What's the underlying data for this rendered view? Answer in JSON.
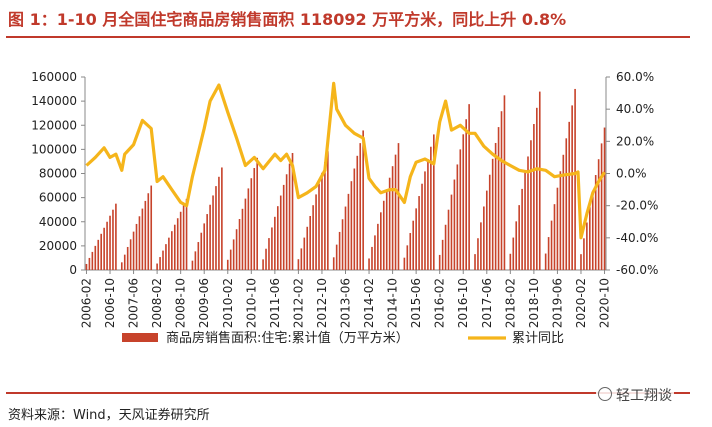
{
  "title": "图 1：1-10 月全国住宅商品房销售面积 118092 万平方米，同比上升 0.8%",
  "source": "资料来源：Wind，天风证券研究所",
  "watermark": "轻工翔谈",
  "colors": {
    "bar": "#c7432b",
    "line": "#f5b51b",
    "title": "#c0392b"
  },
  "chart_data": {
    "type": "bar+line",
    "x_start": "2006-02",
    "x_end": "2020-10",
    "x_tick_labels": [
      "2006-02",
      "2006-10",
      "2007-06",
      "2008-02",
      "2008-10",
      "2009-06",
      "2010-02",
      "2010-10",
      "2011-06",
      "2012-02",
      "2012-10",
      "2013-06",
      "2014-02",
      "2014-10",
      "2015-06",
      "2016-02",
      "2016-10",
      "2017-06",
      "2018-02",
      "2018-10",
      "2019-06",
      "2020-02",
      "2020-10"
    ],
    "y_left": {
      "min": 0,
      "max": 160000,
      "ticks": [
        "0",
        "20000",
        "40000",
        "60000",
        "80000",
        "100000",
        "120000",
        "140000",
        "160000"
      ]
    },
    "y_right": {
      "min": -60,
      "max": 60,
      "ticks": [
        "-60.0%",
        "-40.0%",
        "-20.0%",
        "0.0%",
        "20.0%",
        "40.0%",
        "60.0%"
      ]
    },
    "series": [
      {
        "name": "商品房销售面积:住宅:累计值（万平方米）",
        "type": "bar",
        "axis": "left",
        "year_end_values": {
          "2006": 55000,
          "2007": 70000,
          "2008": 59000,
          "2009": 85000,
          "2010": 93000,
          "2011": 97000,
          "2012": 98500,
          "2013": 115700,
          "2014": 105200,
          "2015": 112400,
          "2016": 137500,
          "2017": 144800,
          "2018": 147900,
          "2019": 150100,
          "2020": 118092
        }
      },
      {
        "name": "累计同比",
        "type": "line",
        "axis": "right",
        "points": [
          [
            "2006-02",
            5
          ],
          [
            "2006-05",
            10
          ],
          [
            "2006-08",
            16
          ],
          [
            "2006-10",
            10
          ],
          [
            "2006-12",
            12
          ],
          [
            "2007-02",
            2
          ],
          [
            "2007-03",
            12
          ],
          [
            "2007-06",
            18
          ],
          [
            "2007-09",
            33
          ],
          [
            "2007-12",
            28
          ],
          [
            "2008-02",
            -5
          ],
          [
            "2008-04",
            -2
          ],
          [
            "2008-07",
            -10
          ],
          [
            "2008-10",
            -18
          ],
          [
            "2008-12",
            -20
          ],
          [
            "2009-02",
            -2
          ],
          [
            "2009-04",
            13
          ],
          [
            "2009-06",
            28
          ],
          [
            "2009-08",
            45
          ],
          [
            "2009-11",
            55
          ],
          [
            "2010-02",
            38
          ],
          [
            "2010-05",
            22
          ],
          [
            "2010-08",
            5
          ],
          [
            "2010-11",
            10
          ],
          [
            "2011-02",
            3
          ],
          [
            "2011-06",
            12
          ],
          [
            "2011-08",
            8
          ],
          [
            "2011-10",
            12
          ],
          [
            "2011-12",
            5
          ],
          [
            "2012-02",
            -15
          ],
          [
            "2012-05",
            -12
          ],
          [
            "2012-08",
            -8
          ],
          [
            "2012-11",
            2
          ],
          [
            "2013-02",
            56
          ],
          [
            "2013-03",
            40
          ],
          [
            "2013-06",
            30
          ],
          [
            "2013-09",
            25
          ],
          [
            "2013-12",
            22
          ],
          [
            "2014-02",
            -3
          ],
          [
            "2014-04",
            -8
          ],
          [
            "2014-06",
            -12
          ],
          [
            "2014-09",
            -10
          ],
          [
            "2014-11",
            -10
          ],
          [
            "2015-02",
            -18
          ],
          [
            "2015-04",
            -2
          ],
          [
            "2015-06",
            7
          ],
          [
            "2015-09",
            9
          ],
          [
            "2015-12",
            6
          ],
          [
            "2016-02",
            32
          ],
          [
            "2016-04",
            45
          ],
          [
            "2016-06",
            27
          ],
          [
            "2016-09",
            30
          ],
          [
            "2016-12",
            25
          ],
          [
            "2017-02",
            25
          ],
          [
            "2017-05",
            17
          ],
          [
            "2017-08",
            12
          ],
          [
            "2017-11",
            8
          ],
          [
            "2018-02",
            5
          ],
          [
            "2018-05",
            2
          ],
          [
            "2018-08",
            1
          ],
          [
            "2018-11",
            3
          ],
          [
            "2019-02",
            2
          ],
          [
            "2019-05",
            -2
          ],
          [
            "2019-08",
            -1
          ],
          [
            "2019-12",
            0
          ],
          [
            "2020-01",
            1
          ],
          [
            "2020-02",
            -40
          ],
          [
            "2020-04",
            -25
          ],
          [
            "2020-06",
            -12
          ],
          [
            "2020-08",
            -5
          ],
          [
            "2020-10",
            0.8
          ]
        ]
      }
    ]
  }
}
